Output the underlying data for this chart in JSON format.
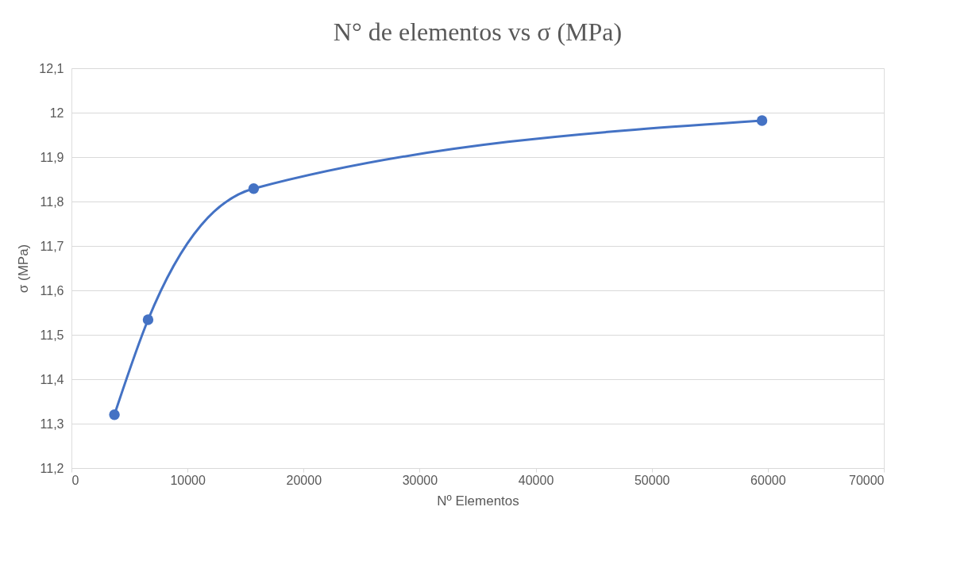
{
  "chart_data": {
    "type": "line",
    "title": "N° de elementos vs σ (MPa)",
    "xlabel": "Nº Elementos",
    "ylabel": "σ (MPa)",
    "x": [
      3700,
      6600,
      15700,
      59500
    ],
    "series": [
      {
        "color": "#4472c4",
        "values": [
          11.32,
          11.534,
          11.829,
          11.982
        ]
      }
    ],
    "xlim": [
      0,
      70000
    ],
    "xticks": [
      0,
      10000,
      20000,
      30000,
      40000,
      50000,
      60000,
      70000
    ],
    "ylim": [
      11.2,
      12.1
    ],
    "yticks": [
      {
        "value": 11.2,
        "label": "11,2"
      },
      {
        "value": 11.3,
        "label": "11,3"
      },
      {
        "value": 11.4,
        "label": "11,4"
      },
      {
        "value": 11.5,
        "label": "11,5"
      },
      {
        "value": 11.6,
        "label": "11,6"
      },
      {
        "value": 11.7,
        "label": "11,7"
      },
      {
        "value": 11.8,
        "label": "11,8"
      },
      {
        "value": 11.9,
        "label": "11,9"
      },
      {
        "value": 12,
        "label": "12"
      },
      {
        "value": 12.1,
        "label": "12,1"
      }
    ],
    "grid": "y",
    "marker": "circle",
    "line_style": "solid"
  }
}
